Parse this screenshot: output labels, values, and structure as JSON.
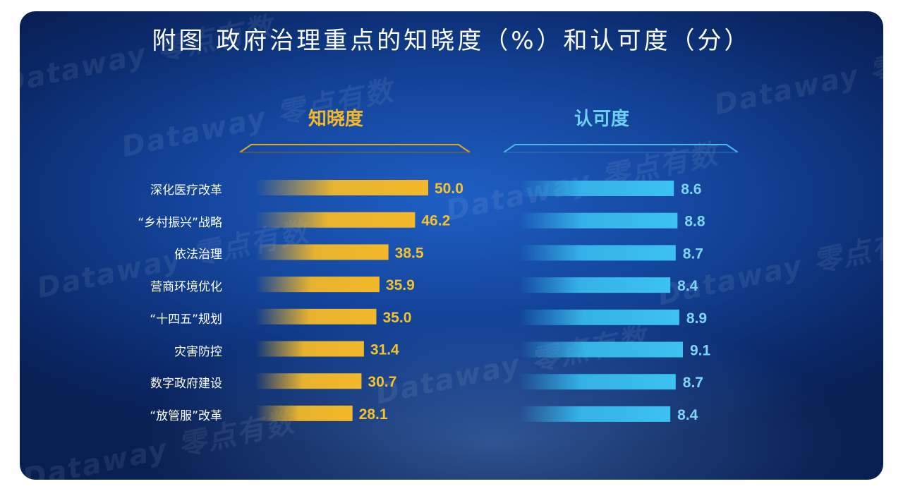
{
  "title": "附图  政府治理重点的知晓度（%）和认可度（分）",
  "watermark": "Dataway 零点有数",
  "colors": {
    "awareness": "#f2b829",
    "recognition": "#36b7ea"
  },
  "chart_data": [
    {
      "type": "bar",
      "orientation": "horizontal",
      "title": "知晓度",
      "categories": [
        "深化医疗改革",
        "“乡村振兴”战略",
        "依法治理",
        "营商环境优化",
        "“十四五”规划",
        "灾害防控",
        "数字政府建设",
        "“放管服”改革"
      ],
      "values": [
        50.0,
        46.2,
        38.5,
        35.9,
        35.0,
        31.4,
        30.7,
        28.1
      ],
      "labels": [
        "50.0",
        "46.2",
        "38.5",
        "35.9",
        "35.0",
        "31.4",
        "30.7",
        "28.1"
      ],
      "xlim": [
        0,
        50
      ]
    },
    {
      "type": "bar",
      "orientation": "horizontal",
      "title": "认可度",
      "categories": [
        "深化医疗改革",
        "“乡村振兴”战略",
        "依法治理",
        "营商环境优化",
        "“十四五”规划",
        "灾害防控",
        "数字政府建设",
        "“放管服”改革"
      ],
      "values": [
        8.6,
        8.8,
        8.7,
        8.4,
        8.9,
        9.1,
        8.7,
        8.4
      ],
      "labels": [
        "8.6",
        "8.8",
        "8.7",
        "8.4",
        "8.9",
        "9.1",
        "8.7",
        "8.4"
      ],
      "xlim": [
        0,
        9.1
      ]
    }
  ]
}
